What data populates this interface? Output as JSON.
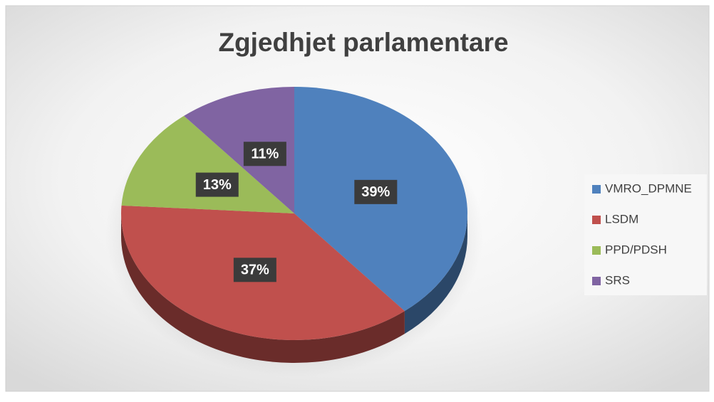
{
  "chart_data": {
    "type": "pie",
    "title": "Zgjedhjet parlamentare",
    "categories": [
      "VMRO_DPMNE",
      "LSDM",
      "PPD/PDSH",
      "SRS"
    ],
    "values": [
      39,
      37,
      13,
      11
    ],
    "value_labels": [
      "39%",
      "37%",
      "13%",
      "11%"
    ],
    "colors": [
      "#4f81bd",
      "#c0504d",
      "#9bbb59",
      "#8064a2"
    ],
    "legend": "right"
  }
}
